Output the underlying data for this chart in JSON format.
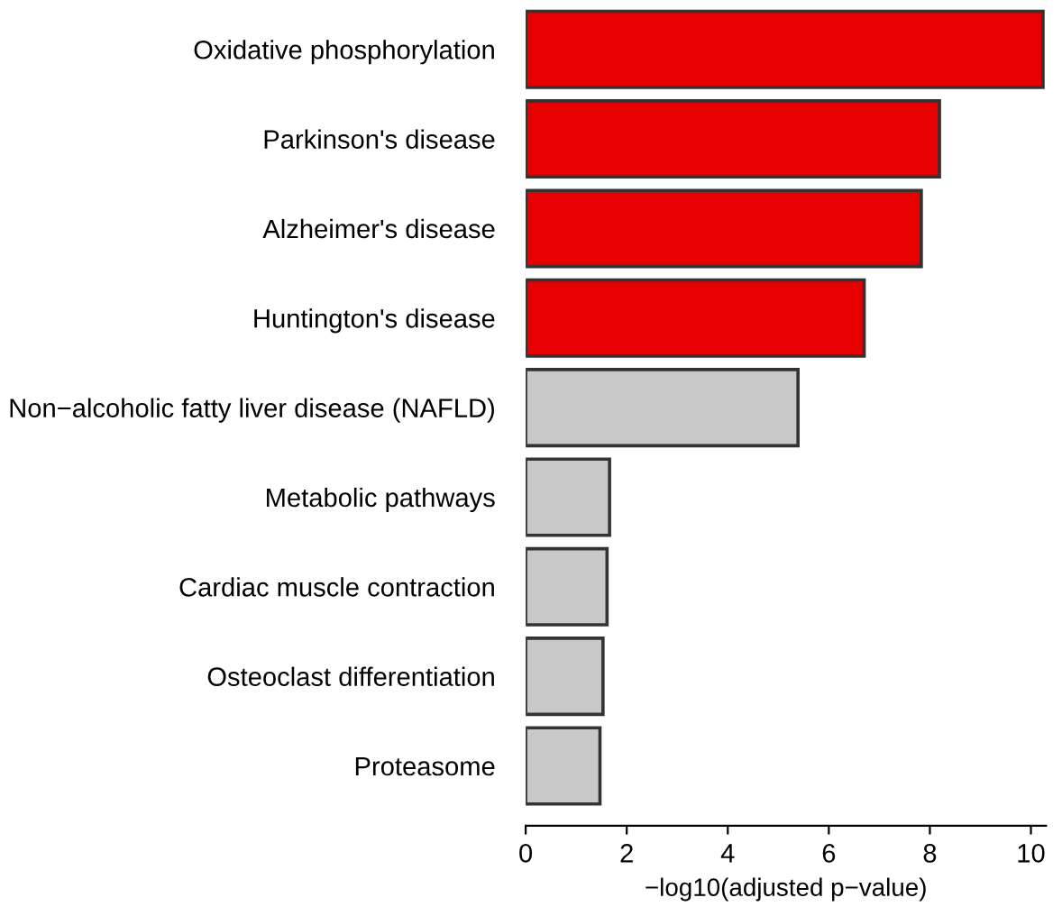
{
  "chart_data": {
    "type": "bar",
    "orientation": "horizontal",
    "xlabel": "−log10(adjusted p−value)",
    "categories": [
      "Oxidative phosphorylation",
      "Parkinson's disease",
      "Alzheimer's disease",
      "Huntington's disease",
      "Non−alcoholic fatty liver disease (NAFLD)",
      "Metabolic pathways",
      "Cardiac muscle contraction",
      "Osteoclast differentiation",
      "Proteasome"
    ],
    "values": [
      10.24,
      8.19,
      7.83,
      6.7,
      5.39,
      1.66,
      1.61,
      1.53,
      1.47
    ],
    "colors": [
      "#e60000",
      "#e60000",
      "#e60000",
      "#e60000",
      "#c8c8c8",
      "#c8c8c8",
      "#c8c8c8",
      "#c8c8c8",
      "#c8c8c8"
    ],
    "xlim": [
      0,
      10.3
    ],
    "xticks": [
      0,
      2,
      4,
      6,
      8,
      10
    ],
    "grid": false
  }
}
